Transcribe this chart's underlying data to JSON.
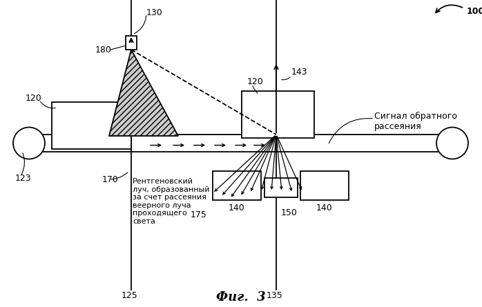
{
  "title": "Фиг.  3",
  "label_100": "100",
  "label_130": "130",
  "label_180": "180",
  "label_120_left": "120",
  "label_120_right": "120",
  "label_123": "123",
  "label_125": "125",
  "label_170": "170",
  "label_143": "143",
  "label_135": "135",
  "label_140_left": "140",
  "label_140_right": "140",
  "label_150": "150",
  "label_175": "175",
  "label_annotation_scatter": "Сигнал обратного\nрассеяния",
  "label_annotation_xray": "Рентгеновский\nлуч, образованный\nза счет рассеяния\nвеерного луча\nпроходящего\nсвета",
  "bg_color": "#ffffff",
  "line_color": "#000000",
  "fig_width": 6.98,
  "fig_height": 4.45
}
